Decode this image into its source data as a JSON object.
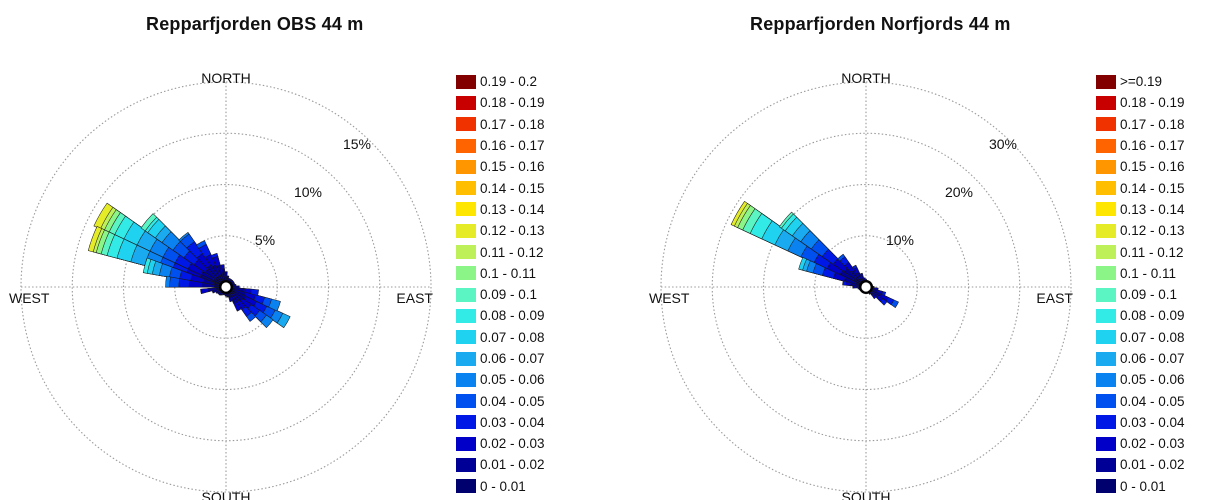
{
  "chart_data": [
    {
      "type": "windrose",
      "title": "Repparfjorden OBS  44 m",
      "directions": [
        "NORTH",
        "EAST",
        "SOUTH",
        "WEST"
      ],
      "radial_ticks": [
        "5%",
        "10%",
        "15%"
      ],
      "radial_values": [
        5,
        10,
        15
      ],
      "rmax": 20,
      "grid": true,
      "legend_position": "right",
      "legend": [
        "0.19 - 0.2",
        "0.18 - 0.19",
        "0.17 - 0.18",
        "0.16 - 0.17",
        "0.15 - 0.16",
        "0.14 - 0.15",
        "0.13 - 0.14",
        "0.12 - 0.13",
        "0.11 - 0.12",
        "0.1 - 0.11",
        "0.09 - 0.1",
        "0.08 - 0.09",
        "0.07 - 0.08",
        "0.06 - 0.07",
        "0.05 - 0.06",
        "0.04 - 0.05",
        "0.03 - 0.04",
        "0.02 - 0.03",
        "0.01 - 0.02",
        "0 - 0.01"
      ],
      "sectors": [
        {
          "direction_deg": 300,
          "cumulative_percent": [
            1.4,
            2.7,
            4.1,
            5.5,
            6.8,
            8.2,
            9.6,
            11.0,
            12.0,
            12.6,
            13.1,
            13.5,
            14.2
          ]
        },
        {
          "direction_deg": 290,
          "cumulative_percent": [
            1.4,
            2.7,
            4.1,
            5.5,
            6.8,
            8.2,
            9.6,
            11.0,
            12.0,
            12.6,
            13.1,
            13.4,
            13.9
          ]
        },
        {
          "direction_deg": 310,
          "cumulative_percent": [
            1.3,
            2.5,
            3.8,
            5.0,
            6.3,
            7.6,
            8.4,
            9.3,
            9.6,
            10.1
          ]
        },
        {
          "direction_deg": 285,
          "cumulative_percent": [
            1.2,
            2.3,
            3.5,
            4.6,
            5.6,
            6.6,
            7.3,
            7.8,
            8.2
          ]
        },
        {
          "direction_deg": 320,
          "cumulative_percent": [
            1.3,
            2.6,
            4.0,
            5.4,
            6.3,
            6.5
          ]
        },
        {
          "direction_deg": 275,
          "cumulative_percent": [
            1.2,
            2.4,
            3.6,
            4.6,
            5.5,
            5.9
          ]
        },
        {
          "direction_deg": 330,
          "cumulative_percent": [
            1.2,
            2.4,
            3.5,
            4.6,
            5.0
          ]
        },
        {
          "direction_deg": 340,
          "cumulative_percent": [
            1.1,
            2.2,
            3.1,
            3.4
          ]
        },
        {
          "direction_deg": 260,
          "cumulative_percent": [
            1.0,
            1.8,
            2.5
          ]
        },
        {
          "direction_deg": 350,
          "cumulative_percent": [
            1.0,
            1.8,
            2.2
          ]
        },
        {
          "direction_deg": 0,
          "cumulative_percent": [
            1.0,
            1.5
          ]
        },
        {
          "direction_deg": 10,
          "cumulative_percent": [
            0.8,
            1.1
          ]
        },
        {
          "direction_deg": 250,
          "cumulative_percent": [
            0.8,
            1.4
          ]
        },
        {
          "direction_deg": 120,
          "cumulative_percent": [
            1.1,
            2.2,
            3.3,
            4.4,
            5.3,
            6.1,
            6.9
          ]
        },
        {
          "direction_deg": 130,
          "cumulative_percent": [
            1.0,
            2.0,
            3.0,
            4.0,
            4.8,
            5.6
          ]
        },
        {
          "direction_deg": 110,
          "cumulative_percent": [
            1.0,
            2.0,
            3.0,
            3.9,
            4.6,
            5.5
          ]
        },
        {
          "direction_deg": 140,
          "cumulative_percent": [
            0.9,
            1.8,
            2.7,
            3.5,
            4.1
          ]
        },
        {
          "direction_deg": 100,
          "cumulative_percent": [
            0.9,
            1.8,
            2.5,
            3.2
          ]
        },
        {
          "direction_deg": 150,
          "cumulative_percent": [
            0.9,
            1.8,
            2.6
          ]
        },
        {
          "direction_deg": 160,
          "cumulative_percent": [
            0.8,
            1.5
          ]
        },
        {
          "direction_deg": 90,
          "cumulative_percent": [
            0.7,
            1.3
          ]
        },
        {
          "direction_deg": 170,
          "cumulative_percent": [
            0.6,
            1.0
          ]
        },
        {
          "direction_deg": 180,
          "cumulative_percent": [
            0.6,
            0.9
          ]
        },
        {
          "direction_deg": 190,
          "cumulative_percent": [
            0.5,
            0.8
          ]
        },
        {
          "direction_deg": 200,
          "cumulative_percent": [
            0.5,
            0.8
          ]
        },
        {
          "direction_deg": 210,
          "cumulative_percent": [
            0.5,
            0.9
          ]
        },
        {
          "direction_deg": 220,
          "cumulative_percent": [
            0.6,
            1.0
          ]
        },
        {
          "direction_deg": 230,
          "cumulative_percent": [
            0.6,
            1.0
          ]
        },
        {
          "direction_deg": 240,
          "cumulative_percent": [
            0.7,
            1.1
          ]
        },
        {
          "direction_deg": 20,
          "cumulative_percent": [
            0.6,
            0.9
          ]
        },
        {
          "direction_deg": 30,
          "cumulative_percent": [
            0.6,
            0.9
          ]
        },
        {
          "direction_deg": 40,
          "cumulative_percent": [
            0.6,
            0.9
          ]
        },
        {
          "direction_deg": 50,
          "cumulative_percent": [
            0.6,
            0.9
          ]
        },
        {
          "direction_deg": 60,
          "cumulative_percent": [
            0.6,
            0.9
          ]
        },
        {
          "direction_deg": 70,
          "cumulative_percent": [
            0.6,
            0.9
          ]
        },
        {
          "direction_deg": 80,
          "cumulative_percent": [
            0.6,
            1.0
          ]
        }
      ]
    },
    {
      "type": "windrose",
      "title": "Repparfjorden Norfjords  44 m",
      "directions": [
        "NORTH",
        "EAST",
        "SOUTH",
        "WEST"
      ],
      "radial_ticks": [
        "10%",
        "20%",
        "30%"
      ],
      "radial_values": [
        10,
        20,
        30
      ],
      "rmax": 40,
      "grid": true,
      "legend_position": "right",
      "legend": [
        ">=0.19",
        "0.18 - 0.19",
        "0.17 - 0.18",
        "0.16 - 0.17",
        "0.15 - 0.16",
        "0.14 - 0.15",
        "0.13 - 0.14",
        "0.12 - 0.13",
        "0.11 - 0.12",
        "0.1 - 0.11",
        "0.09 - 0.1",
        "0.08 - 0.09",
        "0.07 - 0.08",
        "0.06 - 0.07",
        "0.05 - 0.06",
        "0.04 - 0.05",
        "0.03 - 0.04",
        "0.02 - 0.03",
        "0.01 - 0.02",
        "0 - 0.01"
      ],
      "sectors": [
        {
          "direction_deg": 300,
          "cumulative_percent": [
            2.8,
            5.6,
            8.4,
            11.2,
            14.0,
            16.8,
            19.6,
            22.4,
            24.9,
            26.5,
            27.6,
            28.3,
            29.0
          ]
        },
        {
          "direction_deg": 310,
          "cumulative_percent": [
            2.6,
            5.2,
            7.8,
            10.4,
            13.0,
            15.5,
            17.5,
            19.2,
            20.1,
            20.6
          ]
        },
        {
          "direction_deg": 290,
          "cumulative_percent": [
            2.2,
            4.4,
            6.6,
            8.8,
            10.7,
            12.0,
            12.8,
            13.6
          ]
        },
        {
          "direction_deg": 320,
          "cumulative_percent": [
            2.0,
            4.0,
            5.9,
            7.2,
            7.8
          ]
        },
        {
          "direction_deg": 330,
          "cumulative_percent": [
            1.6,
            3.1,
            4.2,
            4.7
          ]
        },
        {
          "direction_deg": 280,
          "cumulative_percent": [
            1.6,
            3.0,
            4.0,
            4.6
          ]
        },
        {
          "direction_deg": 340,
          "cumulative_percent": [
            1.2,
            2.2,
            2.8
          ]
        },
        {
          "direction_deg": 270,
          "cumulative_percent": [
            1.2,
            2.0,
            2.6
          ]
        },
        {
          "direction_deg": 350,
          "cumulative_percent": [
            1.0,
            1.8
          ]
        },
        {
          "direction_deg": 260,
          "cumulative_percent": [
            1.0,
            1.6
          ]
        },
        {
          "direction_deg": 120,
          "cumulative_percent": [
            1.6,
            3.2,
            4.8,
            6.0,
            7.0
          ]
        },
        {
          "direction_deg": 130,
          "cumulative_percent": [
            1.4,
            2.8,
            4.0,
            5.0
          ]
        },
        {
          "direction_deg": 110,
          "cumulative_percent": [
            1.2,
            2.4,
            3.4,
            4.0
          ]
        },
        {
          "direction_deg": 140,
          "cumulative_percent": [
            1.0,
            2.0,
            2.8
          ]
        },
        {
          "direction_deg": 100,
          "cumulative_percent": [
            1.0,
            1.8,
            2.4
          ]
        },
        {
          "direction_deg": 0,
          "cumulative_percent": [
            0.9,
            1.5
          ]
        },
        {
          "direction_deg": 10,
          "cumulative_percent": [
            0.8,
            1.3
          ]
        },
        {
          "direction_deg": 20,
          "cumulative_percent": [
            0.8,
            1.2
          ]
        },
        {
          "direction_deg": 30,
          "cumulative_percent": [
            0.8,
            1.2
          ]
        },
        {
          "direction_deg": 40,
          "cumulative_percent": [
            0.8,
            1.2
          ]
        },
        {
          "direction_deg": 50,
          "cumulative_percent": [
            0.8,
            1.2
          ]
        },
        {
          "direction_deg": 60,
          "cumulative_percent": [
            0.8,
            1.2
          ]
        },
        {
          "direction_deg": 70,
          "cumulative_percent": [
            0.8,
            1.2
          ]
        },
        {
          "direction_deg": 80,
          "cumulative_percent": [
            0.8,
            1.3
          ]
        },
        {
          "direction_deg": 90,
          "cumulative_percent": [
            0.9,
            1.6
          ]
        },
        {
          "direction_deg": 150,
          "cumulative_percent": [
            0.9,
            1.6
          ]
        },
        {
          "direction_deg": 160,
          "cumulative_percent": [
            0.8,
            1.3
          ]
        },
        {
          "direction_deg": 170,
          "cumulative_percent": [
            0.8,
            1.2
          ]
        },
        {
          "direction_deg": 180,
          "cumulative_percent": [
            0.8,
            1.2
          ]
        },
        {
          "direction_deg": 190,
          "cumulative_percent": [
            0.8,
            1.2
          ]
        },
        {
          "direction_deg": 200,
          "cumulative_percent": [
            0.8,
            1.2
          ]
        },
        {
          "direction_deg": 210,
          "cumulative_percent": [
            0.8,
            1.2
          ]
        },
        {
          "direction_deg": 220,
          "cumulative_percent": [
            0.8,
            1.2
          ]
        },
        {
          "direction_deg": 230,
          "cumulative_percent": [
            0.8,
            1.2
          ]
        },
        {
          "direction_deg": 240,
          "cumulative_percent": [
            0.8,
            1.3
          ]
        },
        {
          "direction_deg": 250,
          "cumulative_percent": [
            0.9,
            1.4
          ]
        }
      ]
    }
  ],
  "colors": {
    "bins": [
      "#00006e",
      "#000096",
      "#0000c8",
      "#0018e6",
      "#0050f0",
      "#0a82f0",
      "#19aaf0",
      "#1ed2f0",
      "#32ebe6",
      "#5af5c3",
      "#8cf587",
      "#bef05a",
      "#e6eb28",
      "#ffe600",
      "#ffbe00",
      "#ff9600",
      "#ff6400",
      "#f03200",
      "#c80000",
      "#820000"
    ],
    "grid": "#9a9a9a",
    "petal_edge": "#1a1a1a"
  }
}
